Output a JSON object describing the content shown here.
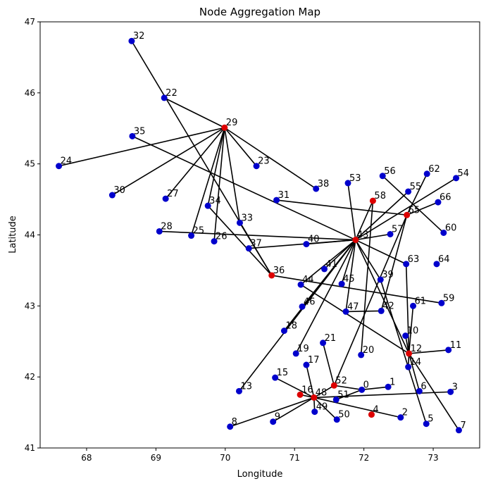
{
  "chart_data": {
    "type": "scatter",
    "title": "Node Aggregation Map",
    "xlabel": "Longitude",
    "ylabel": "Latitude",
    "xlim": [
      67.33,
      73.67
    ],
    "ylim": [
      41.0,
      47.0
    ],
    "xticks": [
      68,
      69,
      70,
      71,
      72,
      73
    ],
    "yticks": [
      41,
      42,
      43,
      44,
      45,
      46,
      47
    ],
    "grid": false,
    "colors": {
      "node": "#0000cc",
      "aggregator": "#dd0000",
      "edge": "#000000"
    },
    "nodes": [
      {
        "id": "0",
        "x": 71.97,
        "y": 41.82,
        "aggregator": false
      },
      {
        "id": "1",
        "x": 72.35,
        "y": 41.86,
        "aggregator": false
      },
      {
        "id": "2",
        "x": 72.53,
        "y": 41.43,
        "aggregator": false
      },
      {
        "id": "3",
        "x": 73.25,
        "y": 41.79,
        "aggregator": false
      },
      {
        "id": "4",
        "x": 72.11,
        "y": 41.47,
        "aggregator": true
      },
      {
        "id": "5",
        "x": 72.9,
        "y": 41.34,
        "aggregator": false
      },
      {
        "id": "6",
        "x": 72.8,
        "y": 41.8,
        "aggregator": false
      },
      {
        "id": "7",
        "x": 73.37,
        "y": 41.25,
        "aggregator": false
      },
      {
        "id": "8",
        "x": 70.07,
        "y": 41.3,
        "aggregator": false
      },
      {
        "id": "9",
        "x": 70.69,
        "y": 41.37,
        "aggregator": false
      },
      {
        "id": "10",
        "x": 72.6,
        "y": 42.58,
        "aggregator": false
      },
      {
        "id": "11",
        "x": 73.22,
        "y": 42.38,
        "aggregator": false
      },
      {
        "id": "12",
        "x": 72.65,
        "y": 42.33,
        "aggregator": true
      },
      {
        "id": "13",
        "x": 70.2,
        "y": 41.8,
        "aggregator": false
      },
      {
        "id": "14",
        "x": 72.64,
        "y": 42.14,
        "aggregator": false
      },
      {
        "id": "15",
        "x": 70.72,
        "y": 41.99,
        "aggregator": false
      },
      {
        "id": "16",
        "x": 71.08,
        "y": 41.75,
        "aggregator": true
      },
      {
        "id": "17",
        "x": 71.17,
        "y": 42.17,
        "aggregator": false
      },
      {
        "id": "18",
        "x": 70.85,
        "y": 42.65,
        "aggregator": false
      },
      {
        "id": "19",
        "x": 71.02,
        "y": 42.33,
        "aggregator": false
      },
      {
        "id": "20",
        "x": 71.96,
        "y": 42.31,
        "aggregator": false
      },
      {
        "id": "21",
        "x": 71.41,
        "y": 42.48,
        "aggregator": false
      },
      {
        "id": "22",
        "x": 69.12,
        "y": 45.93,
        "aggregator": false
      },
      {
        "id": "23",
        "x": 70.45,
        "y": 44.97,
        "aggregator": false
      },
      {
        "id": "24",
        "x": 67.6,
        "y": 44.97,
        "aggregator": false
      },
      {
        "id": "25",
        "x": 69.51,
        "y": 43.99,
        "aggregator": false
      },
      {
        "id": "26",
        "x": 69.84,
        "y": 43.91,
        "aggregator": false
      },
      {
        "id": "27",
        "x": 69.14,
        "y": 44.51,
        "aggregator": false
      },
      {
        "id": "28",
        "x": 69.05,
        "y": 44.05,
        "aggregator": false
      },
      {
        "id": "29",
        "x": 69.99,
        "y": 45.51,
        "aggregator": true
      },
      {
        "id": "30",
        "x": 68.37,
        "y": 44.56,
        "aggregator": false
      },
      {
        "id": "31",
        "x": 70.74,
        "y": 44.49,
        "aggregator": false
      },
      {
        "id": "32",
        "x": 68.65,
        "y": 46.73,
        "aggregator": false
      },
      {
        "id": "33",
        "x": 70.21,
        "y": 44.17,
        "aggregator": false
      },
      {
        "id": "34",
        "x": 69.75,
        "y": 44.41,
        "aggregator": false
      },
      {
        "id": "35",
        "x": 68.66,
        "y": 45.39,
        "aggregator": false
      },
      {
        "id": "36",
        "x": 70.67,
        "y": 43.43,
        "aggregator": true
      },
      {
        "id": "37",
        "x": 70.34,
        "y": 43.81,
        "aggregator": false
      },
      {
        "id": "38",
        "x": 71.31,
        "y": 44.65,
        "aggregator": false
      },
      {
        "id": "39",
        "x": 72.24,
        "y": 43.37,
        "aggregator": false
      },
      {
        "id": "40",
        "x": 71.17,
        "y": 43.87,
        "aggregator": false
      },
      {
        "id": "41",
        "x": 71.43,
        "y": 43.52,
        "aggregator": false
      },
      {
        "id": "42",
        "x": 72.25,
        "y": 42.93,
        "aggregator": false
      },
      {
        "id": "43",
        "x": 71.88,
        "y": 43.93,
        "aggregator": true
      },
      {
        "id": "44",
        "x": 71.09,
        "y": 43.3,
        "aggregator": false
      },
      {
        "id": "45",
        "x": 71.68,
        "y": 43.31,
        "aggregator": false
      },
      {
        "id": "46",
        "x": 71.11,
        "y": 42.99,
        "aggregator": false
      },
      {
        "id": "47",
        "x": 71.74,
        "y": 42.92,
        "aggregator": false
      },
      {
        "id": "48",
        "x": 71.28,
        "y": 41.71,
        "aggregator": true
      },
      {
        "id": "49",
        "x": 71.29,
        "y": 41.51,
        "aggregator": false
      },
      {
        "id": "50",
        "x": 71.61,
        "y": 41.4,
        "aggregator": false
      },
      {
        "id": "51",
        "x": 71.6,
        "y": 41.68,
        "aggregator": false
      },
      {
        "id": "52",
        "x": 71.57,
        "y": 41.88,
        "aggregator": true
      },
      {
        "id": "53",
        "x": 71.77,
        "y": 44.73,
        "aggregator": false
      },
      {
        "id": "54",
        "x": 73.33,
        "y": 44.8,
        "aggregator": false
      },
      {
        "id": "55",
        "x": 72.64,
        "y": 44.61,
        "aggregator": false
      },
      {
        "id": "56",
        "x": 72.27,
        "y": 44.83,
        "aggregator": false
      },
      {
        "id": "57",
        "x": 72.38,
        "y": 44.01,
        "aggregator": false
      },
      {
        "id": "58",
        "x": 72.13,
        "y": 44.48,
        "aggregator": true
      },
      {
        "id": "59",
        "x": 73.12,
        "y": 43.04,
        "aggregator": false
      },
      {
        "id": "60",
        "x": 73.15,
        "y": 44.03,
        "aggregator": false
      },
      {
        "id": "61",
        "x": 72.71,
        "y": 43.0,
        "aggregator": false
      },
      {
        "id": "62",
        "x": 72.91,
        "y": 44.86,
        "aggregator": false
      },
      {
        "id": "63",
        "x": 72.61,
        "y": 43.59,
        "aggregator": false
      },
      {
        "id": "64",
        "x": 73.05,
        "y": 43.59,
        "aggregator": false
      },
      {
        "id": "65",
        "x": 72.62,
        "y": 44.28,
        "aggregator": true
      },
      {
        "id": "66",
        "x": 73.07,
        "y": 44.46,
        "aggregator": false
      }
    ],
    "edges": [
      [
        "32",
        "36"
      ],
      [
        "22",
        "29"
      ],
      [
        "35",
        "43"
      ],
      [
        "24",
        "29"
      ],
      [
        "30",
        "29"
      ],
      [
        "27",
        "29"
      ],
      [
        "34",
        "29"
      ],
      [
        "33",
        "29"
      ],
      [
        "23",
        "29"
      ],
      [
        "38",
        "29"
      ],
      [
        "25",
        "29"
      ],
      [
        "26",
        "29"
      ],
      [
        "34",
        "36"
      ],
      [
        "33",
        "36"
      ],
      [
        "28",
        "43"
      ],
      [
        "37",
        "43"
      ],
      [
        "40",
        "43"
      ],
      [
        "31",
        "65"
      ],
      [
        "53",
        "43"
      ],
      [
        "58",
        "43"
      ],
      [
        "55",
        "43"
      ],
      [
        "54",
        "43"
      ],
      [
        "57",
        "43"
      ],
      [
        "63",
        "43"
      ],
      [
        "41",
        "43"
      ],
      [
        "45",
        "43"
      ],
      [
        "46",
        "43"
      ],
      [
        "18",
        "43"
      ],
      [
        "19",
        "43"
      ],
      [
        "13",
        "43"
      ],
      [
        "39",
        "43"
      ],
      [
        "44",
        "43"
      ],
      [
        "36",
        "59"
      ],
      [
        "44",
        "12"
      ],
      [
        "47",
        "42"
      ],
      [
        "47",
        "43"
      ],
      [
        "43",
        "12"
      ],
      [
        "56",
        "60"
      ],
      [
        "62",
        "65"
      ],
      [
        "66",
        "65"
      ],
      [
        "65",
        "42"
      ],
      [
        "65",
        "52"
      ],
      [
        "58",
        "20"
      ],
      [
        "39",
        "5"
      ],
      [
        "63",
        "12"
      ],
      [
        "10",
        "12"
      ],
      [
        "61",
        "12"
      ],
      [
        "14",
        "12"
      ],
      [
        "12",
        "11"
      ],
      [
        "12",
        "6"
      ],
      [
        "12",
        "7"
      ],
      [
        "21",
        "52"
      ],
      [
        "52",
        "0"
      ],
      [
        "0",
        "1"
      ],
      [
        "51",
        "0"
      ],
      [
        "17",
        "48"
      ],
      [
        "15",
        "48"
      ],
      [
        "16",
        "48"
      ],
      [
        "48",
        "3"
      ],
      [
        "48",
        "49"
      ],
      [
        "48",
        "50"
      ],
      [
        "48",
        "8"
      ],
      [
        "48",
        "9"
      ],
      [
        "48",
        "2"
      ],
      [
        "48",
        "52"
      ]
    ]
  }
}
